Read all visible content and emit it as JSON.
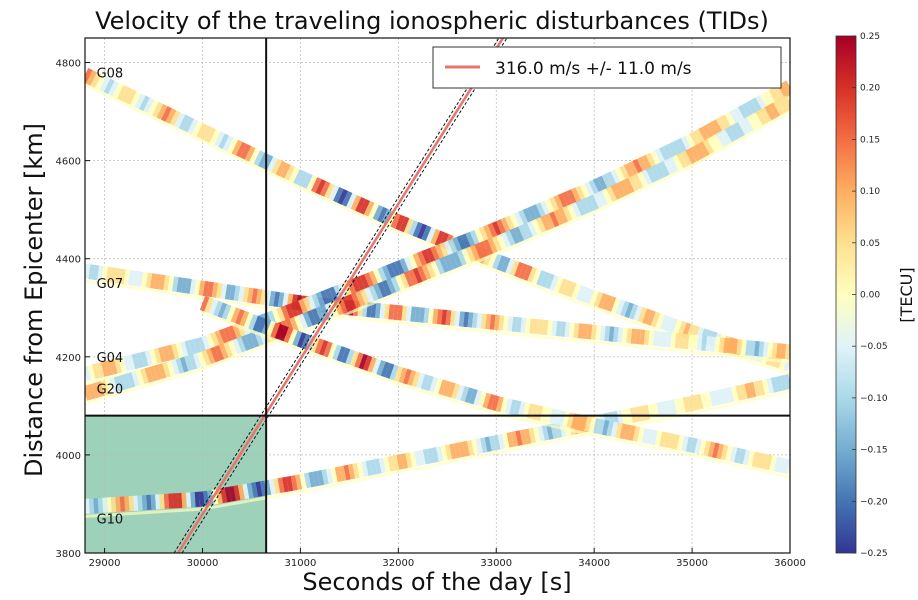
{
  "chart_data": {
    "type": "scatter",
    "title": "Velocity of the traveling ionospheric disturbances (TIDs)",
    "xlabel": "Seconds of the day [s]",
    "ylabel": "Distance from Epicenter [km]",
    "xlim": [
      28800,
      36000
    ],
    "ylim": [
      3800,
      4850
    ],
    "xticks": [
      29000,
      30000,
      31000,
      32000,
      33000,
      34000,
      35000,
      36000
    ],
    "yticks": [
      3800,
      4000,
      4200,
      4400,
      4600,
      4800
    ],
    "grid": true,
    "satellites": [
      {
        "name": "G08",
        "label_x": 29000,
        "label_y": 4780,
        "t": [
          28800,
          30000,
          31000,
          32000,
          33000,
          34000,
          35000,
          36000
        ],
        "d": [
          4775,
          4660,
          4565,
          4475,
          4395,
          4320,
          4250,
          4185
        ]
      },
      {
        "name": "G07",
        "label_x": 29000,
        "label_y": 4350,
        "t": [
          28800,
          30000,
          31000,
          32000,
          33000,
          34000,
          35000,
          36000
        ],
        "d": [
          4375,
          4340,
          4310,
          4290,
          4270,
          4250,
          4230,
          4210
        ]
      },
      {
        "name": "G04",
        "label_x": 29000,
        "label_y": 4200,
        "t": [
          28800,
          30000,
          31000,
          32000,
          33000,
          34000,
          35000,
          36000
        ],
        "d": [
          4165,
          4225,
          4300,
          4380,
          4460,
          4545,
          4640,
          4750
        ]
      },
      {
        "name": "G20",
        "label_x": 29000,
        "label_y": 4135,
        "t": [
          28800,
          30000,
          31000,
          32000,
          33000,
          34000,
          35000,
          36000
        ],
        "d": [
          4125,
          4195,
          4270,
          4350,
          4430,
          4515,
          4610,
          4720
        ]
      },
      {
        "name": "G10",
        "label_x": 29000,
        "label_y": 3870,
        "t": [
          28800,
          30000,
          31000,
          32000,
          33000,
          34000,
          35000,
          36000
        ],
        "d": [
          3895,
          3910,
          3945,
          3985,
          4025,
          4065,
          4105,
          4150
        ]
      },
      {
        "name": "",
        "label_x": 0,
        "label_y": 0,
        "t": [
          30000,
          31000,
          32000,
          33000,
          34000,
          35000,
          36000
        ],
        "d": [
          4310,
          4235,
          4165,
          4105,
          4060,
          4020,
          3975
        ]
      }
    ],
    "fit_line": {
      "legend": "316.0 m/s  +/- 11.0 m/s",
      "speed_km_per_s": 0.316,
      "t": [
        29750,
        33100
      ],
      "d": [
        3800,
        4860
      ],
      "color": "#e8736f"
    },
    "reference_time": 30650,
    "reference_distance": 4080,
    "colorbar": {
      "label": "[TECU]",
      "min": -0.25,
      "max": 0.25,
      "ticks": [
        "0.25",
        "0.20",
        "0.15",
        "0.10",
        "0.05",
        "0.00",
        "−0.05",
        "−0.10",
        "−0.15",
        "−0.20",
        "−0.25"
      ],
      "colors": [
        "#313695",
        "#4575b4",
        "#74add1",
        "#abd9e9",
        "#e0f3f8",
        "#ffffbf",
        "#fee090",
        "#fdae61",
        "#f46d43",
        "#d73027",
        "#a50026"
      ]
    },
    "shade_color": "#8cc9ad"
  }
}
